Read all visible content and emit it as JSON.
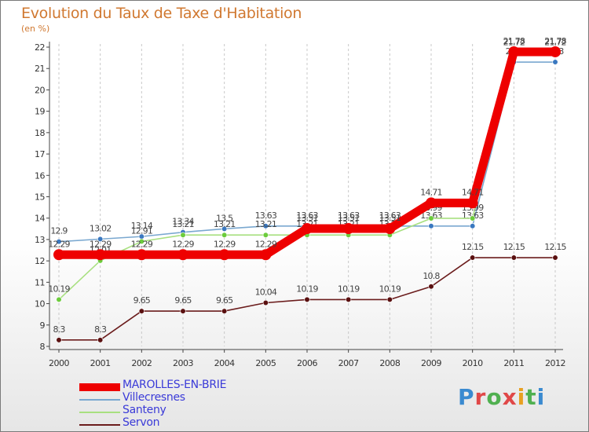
{
  "header": {
    "title": "Evolution du Taux de Taxe d'Habitation",
    "unit": "(en %)"
  },
  "brand": {
    "text": "Proxiti"
  },
  "chart_data": {
    "type": "line",
    "title": "Evolution du Taux de Taxe d'Habitation",
    "ylabel": "(en %)",
    "xlabel": "",
    "ylim": [
      8,
      22
    ],
    "yticks": [
      8,
      9,
      10,
      11,
      12,
      13,
      14,
      15,
      16,
      17,
      18,
      19,
      20,
      21,
      22
    ],
    "grid": "vertical-dashed",
    "legend_position": "bottom-left",
    "categories": [
      "2000",
      "2001",
      "2002",
      "2003",
      "2004",
      "2005",
      "2006",
      "2007",
      "2008",
      "2009",
      "2010",
      "2011",
      "2012"
    ],
    "series": [
      {
        "name": "Servon",
        "color": "#6b1c1c",
        "marker": "#5a1010",
        "values": [
          8.3,
          8.3,
          9.65,
          9.65,
          9.65,
          10.04,
          10.19,
          10.19,
          10.19,
          10.8,
          12.15,
          12.15,
          12.15
        ],
        "labels": [
          "8.3",
          "8.3",
          "9.65",
          "9.65",
          "9.65",
          "10.04",
          "10.19",
          "10.19",
          "10.19",
          "10.8",
          "12.15",
          "12.15",
          "12.15"
        ]
      },
      {
        "name": "Villecresnes",
        "color": "#7aa8d0",
        "marker": "#3a78c0",
        "values": [
          12.9,
          13.02,
          13.14,
          13.34,
          13.5,
          13.63,
          13.63,
          13.63,
          13.63,
          13.63,
          13.63,
          21.3,
          21.3
        ],
        "labels": [
          "12.9",
          "13.02",
          "13.14",
          "13.34",
          "13.5",
          "13.63",
          "13.63",
          "13.63",
          "13.63",
          "13.63",
          "13.63",
          "21.3",
          "21.3"
        ]
      },
      {
        "name": "Santeny",
        "color": "#a8e080",
        "marker": "#6ccc3c",
        "values": [
          10.19,
          12.01,
          12.91,
          13.21,
          13.21,
          13.21,
          13.21,
          13.21,
          13.21,
          13.99,
          13.99,
          21.72,
          21.72
        ],
        "labels": [
          "10.19",
          "12.01",
          "12.91",
          "13.21",
          "13.21",
          "13.21",
          "13.21",
          "13.21",
          "13.21",
          "13.99",
          "13.99",
          "21.72",
          "21.72"
        ]
      },
      {
        "name": "MAROLLES-EN-BRIE",
        "color": "#ee0000",
        "marker": "#ee0000",
        "values": [
          12.29,
          12.29,
          12.29,
          12.29,
          12.29,
          12.29,
          13.51,
          13.51,
          13.51,
          14.71,
          14.71,
          21.78,
          21.78
        ],
        "labels": [
          "12.29",
          "12.29",
          "12.29",
          "12.29",
          "12.29",
          "12.29",
          "13.51",
          "13.51",
          "13.51",
          "14.71",
          "14.71",
          "21.78",
          "21.78"
        ]
      }
    ],
    "legend_order": [
      "MAROLLES-EN-BRIE",
      "Villecresnes",
      "Santeny",
      "Servon"
    ]
  }
}
